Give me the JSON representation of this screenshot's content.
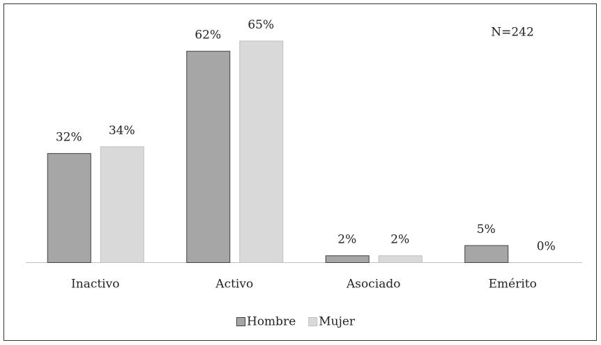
{
  "chart_data": {
    "type": "bar",
    "annotation": "N=242",
    "categories": [
      "Inactivo",
      "Activo",
      "Asociado",
      "Emérito"
    ],
    "series": [
      {
        "name": "Hombre",
        "color": "#a6a6a6",
        "values": [
          32,
          62,
          2,
          5
        ],
        "value_labels": [
          "32%",
          "62%",
          "2%",
          "5%"
        ]
      },
      {
        "name": "Mujer",
        "color": "#d9d9d9",
        "values": [
          34,
          65,
          2,
          0
        ],
        "value_labels": [
          "34%",
          "65%",
          "2%",
          "0%"
        ]
      }
    ],
    "legend": "bottom"
  }
}
